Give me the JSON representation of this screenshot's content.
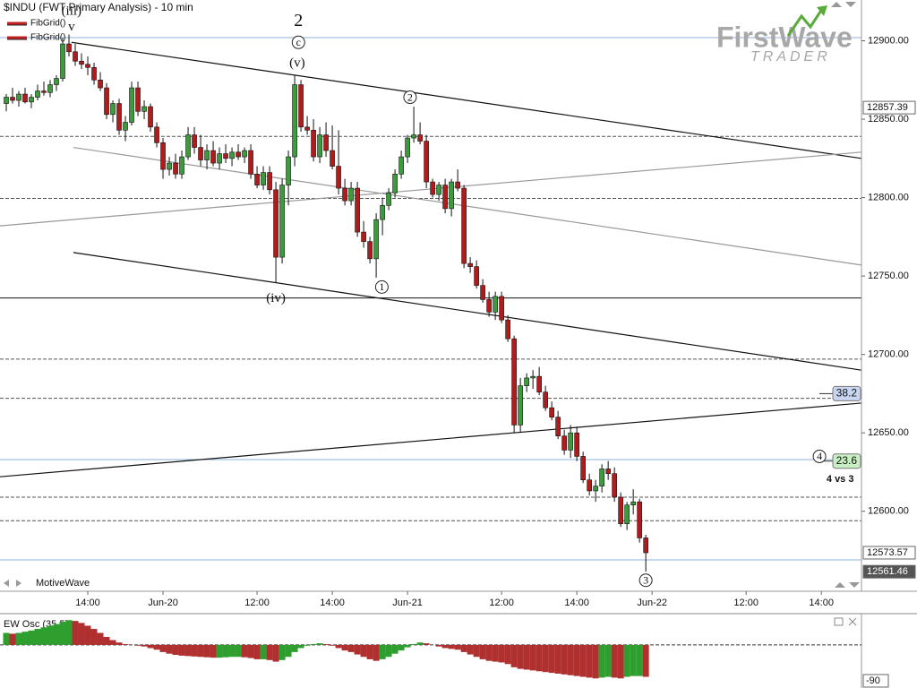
{
  "chart_data": {
    "type": "candlestick",
    "title": "$INDU (FWT Primary Analysis) - 10 min",
    "legend": [
      "FibGrid()",
      "FibGrid()"
    ],
    "brand": "FirstWave",
    "brand_sub": "TRADER",
    "footer": "MotiveWave",
    "up_color": "#3c9c3c",
    "down_color": "#b01c1c",
    "xlim": [
      -1,
      136.4
    ],
    "xticks": [
      {
        "value": 13,
        "label": "14:00"
      },
      {
        "value": 25,
        "label": "Jun-20"
      },
      {
        "value": 40,
        "label": "12:00"
      },
      {
        "value": 52,
        "label": "14:00"
      },
      {
        "value": 64,
        "label": "Jun-21"
      },
      {
        "value": 79,
        "label": "12:00"
      },
      {
        "value": 91,
        "label": "14:00"
      },
      {
        "value": 103,
        "label": "Jun-22"
      },
      {
        "value": 118,
        "label": "12:00"
      },
      {
        "value": 130,
        "label": "14:00"
      }
    ],
    "ylim": [
      12549,
      12926
    ],
    "yticks": [
      {
        "value": 12600,
        "label": "12600.00"
      },
      {
        "value": 12650,
        "label": "12650.00"
      },
      {
        "value": 12700,
        "label": "12700.00"
      },
      {
        "value": 12750,
        "label": "12750.00"
      },
      {
        "value": 12800,
        "label": "12800.00"
      },
      {
        "value": 12850,
        "label": "12850.00"
      },
      {
        "value": 12900,
        "label": "12900.00"
      }
    ],
    "open": [
      12860,
      12864,
      12862,
      12866,
      12861,
      12864,
      12868,
      12867,
      12872,
      12876,
      12898,
      12893,
      12887,
      12885,
      12883,
      12875,
      12870,
      12853,
      12860,
      12843,
      12848,
      12870,
      12855,
      12858,
      12845,
      12835,
      12818,
      12822,
      12815,
      12826,
      12840,
      12832,
      12824,
      12830,
      12822,
      12828,
      12825,
      12829,
      12826,
      12830,
      12815,
      12808,
      12816,
      12805,
      12762,
      12808,
      12826,
      12872,
      12845,
      12843,
      12826,
      12840,
      12830,
      12820,
      12806,
      12798,
      12806,
      12778,
      12772,
      12761,
      12786,
      12795,
      12803,
      12815,
      12826,
      12838,
      12840,
      12836,
      12810,
      12802,
      12808,
      12793,
      12810,
      12806,
      12758,
      12756,
      12744,
      12735,
      12727,
      12737,
      12722,
      12710,
      12655,
      12680,
      12685,
      12686,
      12676,
      12666,
      12660,
      12648,
      12639,
      12650,
      12635,
      12620,
      12613,
      12616,
      12627,
      12624,
      12609,
      12592,
      12604,
      12606,
      12583
    ],
    "high": [
      12866,
      12870,
      12868,
      12870,
      12866,
      12872,
      12874,
      12875,
      12878,
      12902,
      12904,
      12898,
      12892,
      12890,
      12886,
      12880,
      12873,
      12862,
      12863,
      12852,
      12874,
      12874,
      12862,
      12860,
      12848,
      12838,
      12826,
      12828,
      12830,
      12845,
      12845,
      12840,
      12834,
      12836,
      12832,
      12834,
      12832,
      12834,
      12832,
      12834,
      12820,
      12820,
      12820,
      12810,
      12812,
      12830,
      12878,
      12875,
      12852,
      12850,
      12845,
      12848,
      12846,
      12843,
      12812,
      12810,
      12810,
      12785,
      12775,
      12790,
      12800,
      12806,
      12818,
      12830,
      12840,
      12858,
      12848,
      12840,
      12812,
      12810,
      12812,
      12812,
      12818,
      12808,
      12762,
      12760,
      12748,
      12740,
      12740,
      12740,
      12725,
      12712,
      12685,
      12688,
      12690,
      12692,
      12680,
      12670,
      12664,
      12652,
      12655,
      12654,
      12638,
      12624,
      12620,
      12630,
      12632,
      12628,
      12612,
      12606,
      12614,
      12608,
      12585
    ],
    "low": [
      12855,
      12860,
      12858,
      12860,
      12857,
      12862,
      12865,
      12864,
      12868,
      12874,
      12890,
      12884,
      12882,
      12878,
      12872,
      12868,
      12850,
      12848,
      12840,
      12836,
      12846,
      12852,
      12850,
      12842,
      12832,
      12812,
      12814,
      12812,
      12812,
      12824,
      12828,
      12820,
      12818,
      12820,
      12818,
      12822,
      12820,
      12824,
      12822,
      12812,
      12806,
      12805,
      12802,
      12746,
      12758,
      12795,
      12820,
      12842,
      12840,
      12823,
      12822,
      12826,
      12818,
      12802,
      12795,
      12795,
      12775,
      12768,
      12758,
      12749,
      12776,
      12792,
      12800,
      12812,
      12822,
      12835,
      12834,
      12806,
      12800,
      12798,
      12790,
      12788,
      12804,
      12755,
      12752,
      12742,
      12733,
      12724,
      12722,
      12720,
      12708,
      12650,
      12650,
      12676,
      12678,
      12674,
      12664,
      12658,
      12646,
      12636,
      12634,
      12632,
      12618,
      12610,
      12606,
      12612,
      12620,
      12606,
      12590,
      12588,
      12598,
      12580,
      12561.46
    ],
    "close": [
      12864,
      12862,
      12866,
      12861,
      12864,
      12868,
      12867,
      12872,
      12876,
      12898,
      12893,
      12887,
      12885,
      12883,
      12875,
      12870,
      12853,
      12860,
      12843,
      12848,
      12870,
      12855,
      12858,
      12845,
      12835,
      12818,
      12822,
      12815,
      12826,
      12840,
      12832,
      12824,
      12830,
      12822,
      12828,
      12825,
      12829,
      12826,
      12830,
      12815,
      12808,
      12816,
      12805,
      12762,
      12808,
      12826,
      12872,
      12845,
      12843,
      12826,
      12840,
      12830,
      12820,
      12806,
      12798,
      12806,
      12778,
      12772,
      12761,
      12786,
      12795,
      12803,
      12815,
      12826,
      12838,
      12840,
      12836,
      12810,
      12802,
      12808,
      12793,
      12810,
      12806,
      12758,
      12756,
      12744,
      12735,
      12727,
      12737,
      12722,
      12710,
      12655,
      12680,
      12685,
      12686,
      12676,
      12666,
      12660,
      12648,
      12639,
      12650,
      12635,
      12620,
      12613,
      12616,
      12627,
      12624,
      12609,
      12592,
      12604,
      12606,
      12583,
      12573.57
    ],
    "horizontal_lines": [
      {
        "value": 12902,
        "style": "blue"
      },
      {
        "value": 12839,
        "style": "dashed"
      },
      {
        "value": 12799.5,
        "style": "dashed"
      },
      {
        "value": 12736,
        "style": "solid"
      },
      {
        "value": 12697,
        "style": "dashed"
      },
      {
        "value": 12672,
        "style": "dashed"
      },
      {
        "value": 12633,
        "style": "blue"
      },
      {
        "value": 12609,
        "style": "dashed"
      },
      {
        "value": 12594,
        "style": "dashed"
      },
      {
        "value": 12569,
        "style": "blue"
      }
    ],
    "trend_lines": [
      {
        "x": [
          10.4,
          136.4
        ],
        "y": [
          12899,
          12825
        ],
        "color": "#111"
      },
      {
        "x": [
          10.7,
          136.4
        ],
        "y": [
          12832,
          12757
        ],
        "color": "#999"
      },
      {
        "x": [
          10.7,
          136.4
        ],
        "y": [
          12765,
          12690
        ],
        "color": "#111"
      },
      {
        "x": [
          -1,
          136.4
        ],
        "y": [
          12782,
          12829
        ],
        "color": "#999"
      },
      {
        "x": [
          -1,
          136.4
        ],
        "y": [
          12622,
          12669
        ],
        "color": "#111"
      }
    ],
    "fib_levels": [
      {
        "level": 38.2,
        "price": 12675,
        "color": "#c9d6f2"
      },
      {
        "level": 23.6,
        "price": 12632,
        "color": "#c8efc4"
      }
    ],
    "price_markers": [
      12857.39,
      12573.57,
      12561.46
    ],
    "annotations": [
      {
        "text": "2",
        "x": 46.6,
        "y": 12912.6,
        "circled": false,
        "large": true
      },
      {
        "text": "c",
        "x": 46.6,
        "y": 12899,
        "circled": true
      },
      {
        "text": "(v)",
        "x": 46.4,
        "y": 12886,
        "circled": false
      },
      {
        "text": "(iii)",
        "x": 10.4,
        "y": 12919,
        "circled": false
      },
      {
        "text": "v",
        "x": 10.4,
        "y": 12909,
        "circled": false
      },
      {
        "text": "(iv)",
        "x": 43,
        "y": 12736,
        "circled": false
      },
      {
        "text": "1",
        "x": 59.9,
        "y": 12743,
        "circled": true
      },
      {
        "text": "2",
        "x": 64.4,
        "y": 12864,
        "circled": true
      },
      {
        "text": "3",
        "x": 102,
        "y": 12556,
        "circled": true
      },
      {
        "text": "4",
        "x": 129.7,
        "y": 12635,
        "circled": true
      },
      {
        "text": "4 vs 3",
        "x": 133,
        "y": 12621,
        "circled": false,
        "bold": true
      }
    ],
    "oscillator": {
      "name": "EW Osc (35,5)",
      "ylim": [
        -108,
        76
      ],
      "yticks": [
        -90
      ],
      "up_color": "#2e9e2e",
      "down_color": "#b03030",
      "values": [
        30,
        28,
        30,
        33,
        36,
        40,
        44,
        48,
        52,
        58,
        62,
        60,
        55,
        48,
        40,
        30,
        20,
        12,
        6,
        2,
        0,
        -2,
        -4,
        -8,
        -12,
        -18,
        -22,
        -25,
        -27,
        -28,
        -29,
        -30,
        -31,
        -32,
        -32,
        -31,
        -30,
        -30,
        -31,
        -33,
        -36,
        -36,
        -38,
        -42,
        -38,
        -30,
        -18,
        -8,
        -2,
        2,
        4,
        2,
        -2,
        -8,
        -14,
        -18,
        -24,
        -30,
        -36,
        -40,
        -36,
        -30,
        -22,
        -14,
        -6,
        2,
        6,
        4,
        0,
        -4,
        -8,
        -10,
        -12,
        -18,
        -24,
        -30,
        -36,
        -40,
        -42,
        -44,
        -48,
        -56,
        -60,
        -62,
        -64,
        -66,
        -68,
        -70,
        -72,
        -74,
        -76,
        -78,
        -80,
        -82,
        -84,
        -82,
        -80,
        -82,
        -84,
        -80,
        -78,
        -78,
        -80
      ]
    }
  }
}
